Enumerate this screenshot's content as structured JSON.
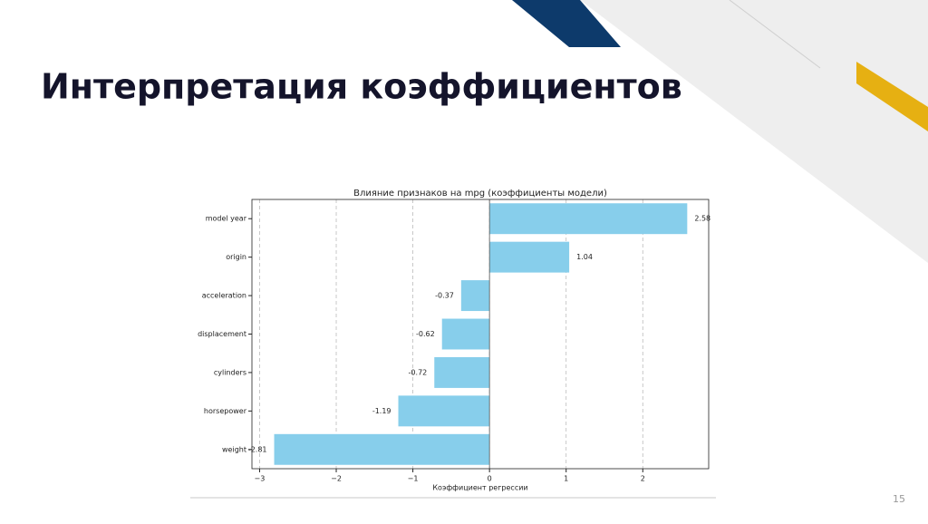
{
  "slide_title": "Интерпретация коэффициентов",
  "page_number": 15,
  "chart_data": {
    "type": "barh",
    "title": "Влияние признаков на mpg (коэффициенты модели)",
    "x_label": "Коэффициент регрессии",
    "categories": [
      "model year",
      "origin",
      "acceleration",
      "displacement",
      "cylinders",
      "horsepower",
      "weight"
    ],
    "values": [
      2.58,
      1.04,
      -0.37,
      -0.62,
      -0.72,
      -1.19,
      -2.81
    ],
    "color": "#87ceeb",
    "xlim": [
      -3.1,
      2.86
    ],
    "xticks": [
      {
        "value": -3,
        "label": "−3"
      },
      {
        "value": -2,
        "label": "−2"
      },
      {
        "value": -1,
        "label": "−1"
      },
      0,
      1,
      2
    ],
    "grid": true
  }
}
